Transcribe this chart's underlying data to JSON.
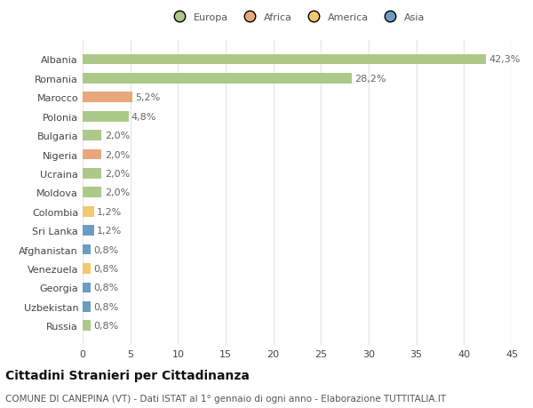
{
  "title": "Cittadini Stranieri per Cittadinanza",
  "subtitle": "COMUNE DI CANEPINA (VT) - Dati ISTAT al 1° gennaio di ogni anno - Elaborazione TUTTITALIA.IT",
  "legend_labels": [
    "Europa",
    "Africa",
    "America",
    "Asia"
  ],
  "legend_colors": [
    "#adc98a",
    "#e8a87c",
    "#f2c96e",
    "#6b9dc2"
  ],
  "countries": [
    "Albania",
    "Romania",
    "Marocco",
    "Polonia",
    "Bulgaria",
    "Nigeria",
    "Ucraina",
    "Moldova",
    "Colombia",
    "Sri Lanka",
    "Afghanistan",
    "Venezuela",
    "Georgia",
    "Uzbekistan",
    "Russia"
  ],
  "values": [
    42.3,
    28.2,
    5.2,
    4.8,
    2.0,
    2.0,
    2.0,
    2.0,
    1.2,
    1.2,
    0.8,
    0.8,
    0.8,
    0.8,
    0.8
  ],
  "labels": [
    "42,3%",
    "28,2%",
    "5,2%",
    "4,8%",
    "2,0%",
    "2,0%",
    "2,0%",
    "2,0%",
    "1,2%",
    "1,2%",
    "0,8%",
    "0,8%",
    "0,8%",
    "0,8%",
    "0,8%"
  ],
  "bar_colors": [
    "#adc98a",
    "#adc98a",
    "#e8a87c",
    "#adc98a",
    "#adc98a",
    "#e8a87c",
    "#adc98a",
    "#adc98a",
    "#f2c96e",
    "#6b9dc2",
    "#6b9dc2",
    "#f2c96e",
    "#6b9dc2",
    "#6b9dc2",
    "#adc98a"
  ],
  "xlim": [
    0,
    45
  ],
  "xticks": [
    0,
    5,
    10,
    15,
    20,
    25,
    30,
    35,
    40,
    45
  ],
  "background_color": "#ffffff",
  "grid_color": "#e8e8e8",
  "label_fontsize": 8,
  "tick_fontsize": 8,
  "title_fontsize": 10,
  "subtitle_fontsize": 7.5
}
